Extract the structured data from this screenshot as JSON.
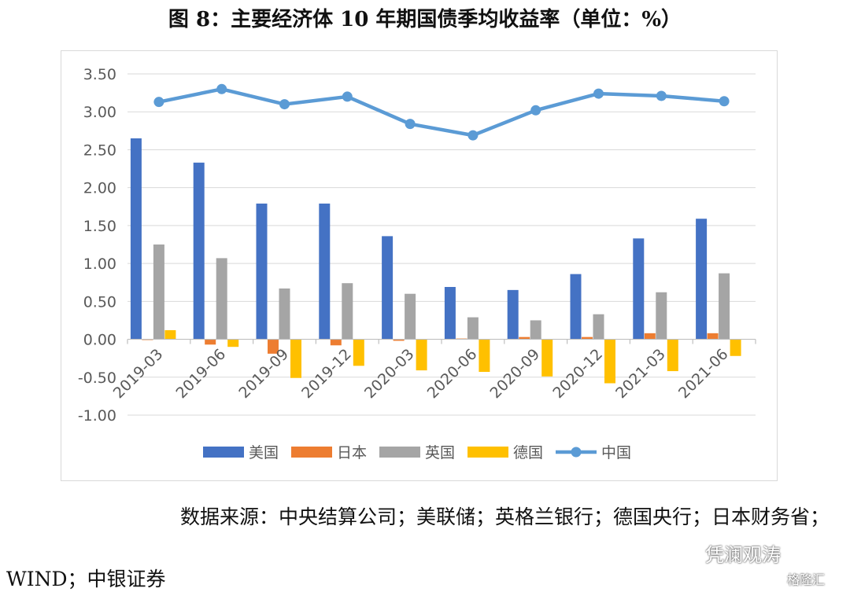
{
  "title": "图 8：主要经济体 10 年期国债季均收益率（单位：%）",
  "source_line1": "数据来源：中央结算公司；美联储；英格兰银行；德国央行；日本财务省；",
  "source_line2": "WIND；中银证券",
  "watermark1": "凭澜观涛",
  "watermark2": "格隆汇",
  "chart_data": {
    "type": "bar",
    "categories": [
      "2019-03",
      "2019-06",
      "2019-09",
      "2019-12",
      "2020-03",
      "2020-06",
      "2020-09",
      "2020-12",
      "2021-03",
      "2021-06"
    ],
    "ylim": [
      -1.0,
      3.5
    ],
    "yticks": [
      "3.50",
      "3.00",
      "2.50",
      "2.00",
      "1.50",
      "1.00",
      "0.50",
      "0.00",
      "-0.50",
      "-1.00"
    ],
    "grid": true,
    "legend_position": "bottom",
    "series": [
      {
        "name": "美国",
        "kind": "bar",
        "color": "#4472C4",
        "values": [
          2.65,
          2.33,
          1.79,
          1.79,
          1.36,
          0.69,
          0.65,
          0.86,
          1.33,
          1.59
        ]
      },
      {
        "name": "日本",
        "kind": "bar",
        "color": "#ED7D31",
        "values": [
          -0.01,
          -0.07,
          -0.19,
          -0.08,
          -0.02,
          0.01,
          0.03,
          0.03,
          0.08,
          0.08
        ]
      },
      {
        "name": "英国",
        "kind": "bar",
        "color": "#A5A5A5",
        "values": [
          1.25,
          1.07,
          0.67,
          0.74,
          0.6,
          0.29,
          0.25,
          0.33,
          0.62,
          0.87
        ]
      },
      {
        "name": "德国",
        "kind": "bar",
        "color": "#FFC000",
        "values": [
          0.12,
          -0.1,
          -0.51,
          -0.35,
          -0.41,
          -0.43,
          -0.49,
          -0.58,
          -0.42,
          -0.22
        ]
      },
      {
        "name": "中国",
        "kind": "line",
        "color": "#5B9BD5",
        "values": [
          3.13,
          3.3,
          3.1,
          3.2,
          2.84,
          2.69,
          3.02,
          3.24,
          3.21,
          3.14
        ]
      }
    ]
  }
}
